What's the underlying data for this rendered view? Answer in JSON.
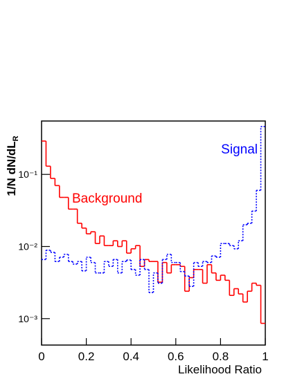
{
  "chart_data": {
    "type": "histogram",
    "x_label": "Likelihood Ratio",
    "y_label": "1/N dN/dL",
    "y_label_sub": "R",
    "bins": [
      0,
      0.02,
      0.04,
      0.06,
      0.08,
      0.1,
      0.12,
      0.14,
      0.16,
      0.18,
      0.2,
      0.22,
      0.24,
      0.26,
      0.28,
      0.3,
      0.32,
      0.34,
      0.36,
      0.38,
      0.4,
      0.42,
      0.44,
      0.46,
      0.48,
      0.5,
      0.52,
      0.54,
      0.56,
      0.58,
      0.6,
      0.62,
      0.64,
      0.66,
      0.68,
      0.7,
      0.72,
      0.74,
      0.76,
      0.78,
      0.8,
      0.82,
      0.84,
      0.86,
      0.88,
      0.9,
      0.92,
      0.94,
      0.96,
      0.98,
      1
    ],
    "series": [
      {
        "name": "Background",
        "color": "#ff0000",
        "dash": false,
        "values": [
          0.29,
          0.13,
          0.088,
          0.07,
          0.048,
          0.048,
          0.033,
          0.033,
          0.021,
          0.018,
          0.015,
          0.016,
          0.011,
          0.014,
          0.0103,
          0.0103,
          0.012,
          0.01,
          0.012,
          0.0081,
          0.0093,
          0.0103,
          0.0053,
          0.0066,
          0.0062,
          0.0062,
          0.0032,
          0.006,
          0.0043,
          0.0056,
          0.0056,
          0.0053,
          0.0024,
          0.0037,
          0.0048,
          0.0048,
          0.0031,
          0.0056,
          0.0043,
          0.0034,
          0.004,
          0.0034,
          0.0021,
          0.0026,
          0.0022,
          0.0017,
          0.0024,
          0.0031,
          0.0029,
          0.00086
        ]
      },
      {
        "name": "Signal",
        "color": "#0000ff",
        "dash": true,
        "values": [
          0.0066,
          0.0089,
          0.0083,
          0.0062,
          0.0071,
          0.0078,
          0.0062,
          0.0057,
          0.0062,
          0.0046,
          0.0071,
          0.006,
          0.0043,
          0.0043,
          0.0062,
          0.0053,
          0.0066,
          0.0043,
          0.0062,
          0.0065,
          0.0048,
          0.004,
          0.0066,
          0.0048,
          0.0023,
          0.0043,
          0.0031,
          0.0066,
          0.0078,
          0.006,
          0.006,
          0.0045,
          0.0039,
          0.0028,
          0.006,
          0.0053,
          0.0062,
          0.006,
          0.0074,
          0.0071,
          0.011,
          0.011,
          0.0103,
          0.0093,
          0.012,
          0.02,
          0.021,
          0.031,
          0.06,
          0.46
        ]
      }
    ],
    "xlim": [
      0,
      1
    ],
    "xticks": [
      0,
      0.2,
      0.4,
      0.6,
      0.8,
      1
    ],
    "ylim": [
      0.00043,
      0.55
    ],
    "ylog": true,
    "yticks": [
      {
        "value": 0.001,
        "label": "10⁻³"
      },
      {
        "value": 0.01,
        "label": "10⁻²"
      },
      {
        "value": 0.1,
        "label": "10⁻¹"
      }
    ]
  }
}
